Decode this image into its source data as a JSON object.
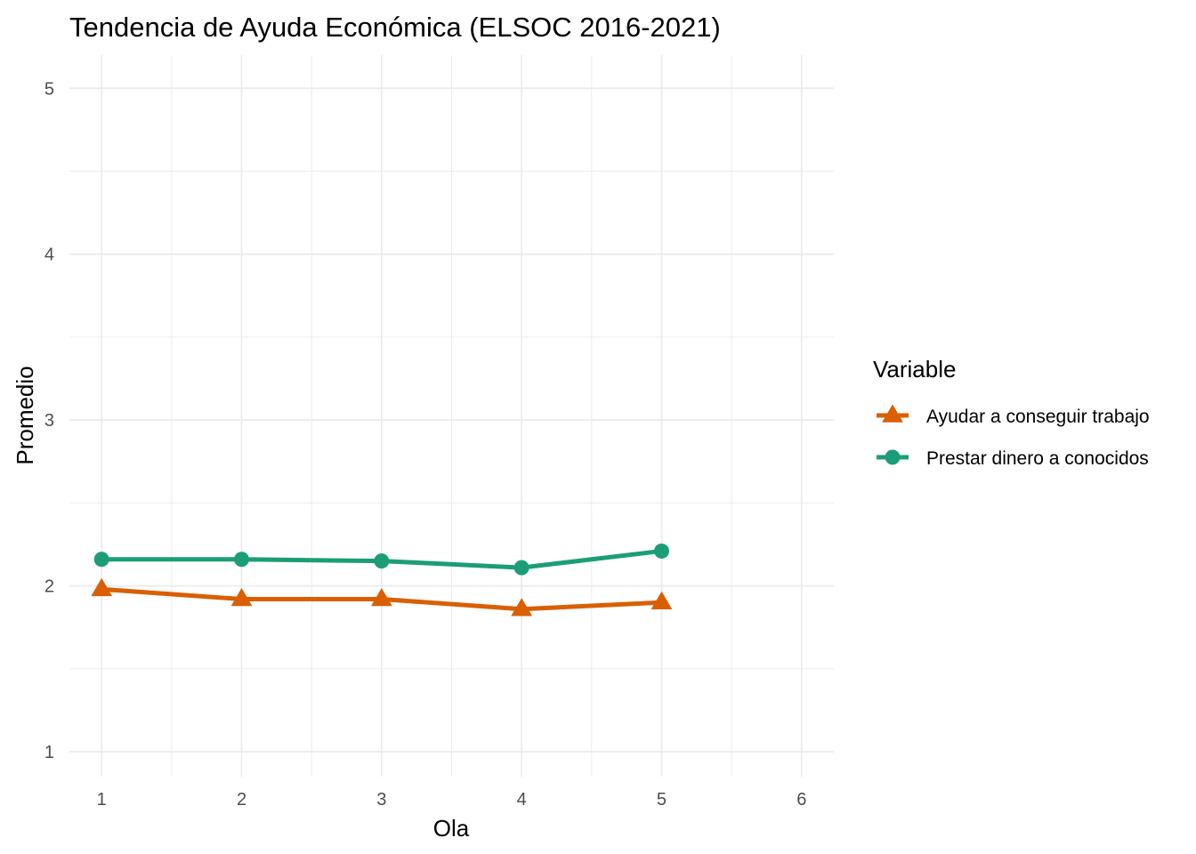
{
  "chart_data": {
    "type": "line",
    "title": "Tendencia de Ayuda Económica (ELSOC 2016-2021)",
    "xlabel": "Ola",
    "ylabel": "Promedio",
    "x": [
      1,
      2,
      3,
      4,
      5
    ],
    "xlim": [
      0.77,
      6.23
    ],
    "ylim": [
      0.85,
      5.2
    ],
    "xticks": [
      "1",
      "2",
      "3",
      "4",
      "5",
      "6"
    ],
    "yticks": [
      "1",
      "2",
      "3",
      "4",
      "5"
    ],
    "grid": true,
    "legend_title": "Variable",
    "legend_position": "right",
    "series": [
      {
        "name": "Ayudar a conseguir trabajo",
        "values": [
          1.98,
          1.92,
          1.92,
          1.86,
          1.9
        ],
        "color": "#D95F02",
        "marker": "triangle"
      },
      {
        "name": "Prestar dinero a conocidos",
        "values": [
          2.16,
          2.16,
          2.15,
          2.11,
          2.21
        ],
        "color": "#1B9E77",
        "marker": "circle"
      }
    ]
  }
}
